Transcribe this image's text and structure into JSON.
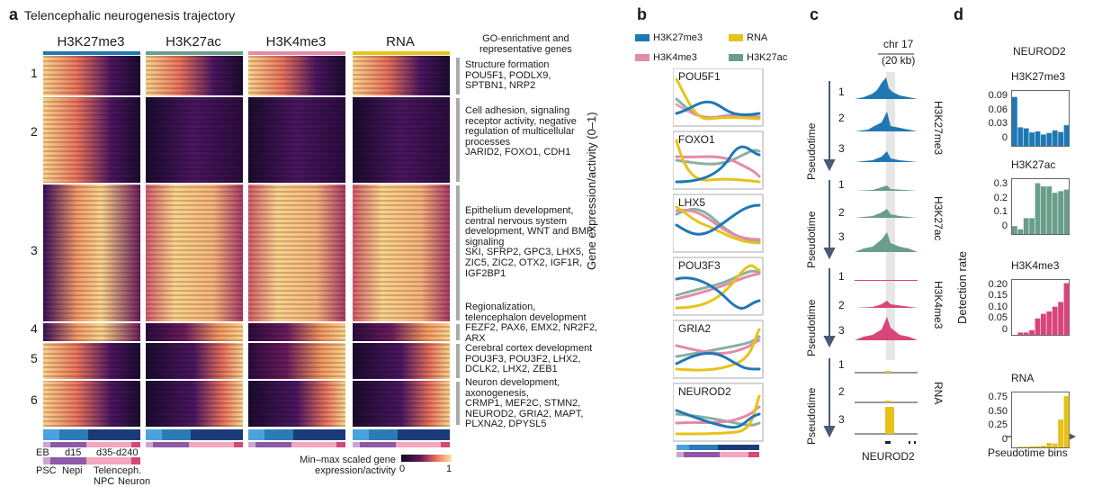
{
  "panel_a": {
    "label": "a",
    "title": "Telencephalic neurogenesis trajectory",
    "headers": [
      "H3K27me3",
      "H3K27ac",
      "H3K4me3",
      "RNA"
    ],
    "go_header": "GO-enrichment and\nrepresentative genes",
    "cluster_ids": [
      "1",
      "2",
      "3",
      "4",
      "5",
      "6"
    ],
    "go_terms": [
      "Structure formation\nPOU5F1, PODLX9,\nSPTBN1, NRP2",
      "Cell adhesion, signaling\nreceptor activity, negative\nregulation of multicellular\nprocesses\nJARID2, FOXO1, CDH1",
      "Epithelium development,\ncentral nervous system\ndevelopment, WNT and BMP\nsignaling\nSKI, SFRP2, GPC3, LHX5,\nZIC5, ZIC2, OTX2, IGF1R,\nIGF2BP1",
      "Regionalization,\ntelencephalon development\nFEZF2, PAX6, EMX2, NR2F2,\nARX",
      "Cerebral cortex development\nPOU3F3, POU3F2, LHX2,\nDCLK2, LHX2, ZEB1",
      "Neuron development,\naxonogenesis,\nCRMP1, MEF2C, STMN2,\nNEUROD2, GRIA2, MAPT,\nPLXNA2, DPYSL5"
    ],
    "time_labels": [
      "EB",
      "d15",
      "d35-d240"
    ],
    "stage_labels_row1": [
      "PSC",
      "Nepi",
      "Telenceph."
    ],
    "stage_labels_row2": [
      "NPC",
      "Neuron"
    ],
    "legend_title": "Min–max scaled gene\nexpression/activity",
    "legend_min": "0",
    "legend_max": "1"
  },
  "panel_b": {
    "label": "b",
    "legend": [
      "H3K27me3",
      "RNA",
      "H3K4me3",
      "H3K27ac"
    ],
    "genes": [
      "POU5F1",
      "FOXO1",
      "LHX5",
      "POU3F3",
      "GRIA2",
      "NEUROD2"
    ],
    "ylabel": "Gene expression/activity (0–1)"
  },
  "panel_c": {
    "label": "c",
    "locus": "chr 17",
    "scale": "(20 kb)",
    "track_names": [
      "H3K27me3",
      "H3K27ac",
      "H3K4me3",
      "RNA"
    ],
    "pseudotime": "Pseudotime",
    "rows": [
      "1",
      "2",
      "3"
    ],
    "gene": "NEUROD2"
  },
  "panel_d": {
    "label": "d",
    "gene": "NEUROD2",
    "ylabel": "Detection rate",
    "xlabel": "Pseudotime bins",
    "charts": [
      {
        "title": "H3K27me3",
        "ticks": [
          "0.09",
          "0.06",
          "0.03",
          "0"
        ],
        "color": "#1f78b4",
        "values": [
          0.095,
          0.036,
          0.034,
          0.026,
          0.028,
          0.022,
          0.025,
          0.03,
          0.027,
          0.04
        ],
        "ymax": 0.105
      },
      {
        "title": "H3K27ac",
        "ticks": [
          "0.3",
          "0.2",
          "0.1",
          "0"
        ],
        "color": "#6a9e8a",
        "values": [
          0.05,
          0.03,
          0.1,
          0.1,
          0.32,
          0.3,
          0.3,
          0.26,
          0.27,
          0.28
        ],
        "ymax": 0.34
      },
      {
        "title": "H3K4me3",
        "ticks": [
          "0.20",
          "0.15",
          "0.10",
          "0.05",
          "0"
        ],
        "color": "#d9457a",
        "values": [
          0.0,
          0.01,
          0.01,
          0.02,
          0.07,
          0.09,
          0.1,
          0.12,
          0.14,
          0.22
        ],
        "ymax": 0.23
      },
      {
        "title": "RNA",
        "ticks": [
          "0.75",
          "0.50",
          "0.25",
          "0"
        ],
        "color": "#e8c21a",
        "values": [
          0.0,
          0.01,
          0.01,
          0.02,
          0.02,
          0.03,
          0.08,
          0.07,
          0.5,
          0.92
        ],
        "ymax": 0.97
      }
    ]
  },
  "colors": {
    "h3k27me3": "#1f78b4",
    "h3k27ac": "#6a9e8a",
    "h3k4me3": "#e58aa7",
    "rna": "#e8c21a"
  }
}
